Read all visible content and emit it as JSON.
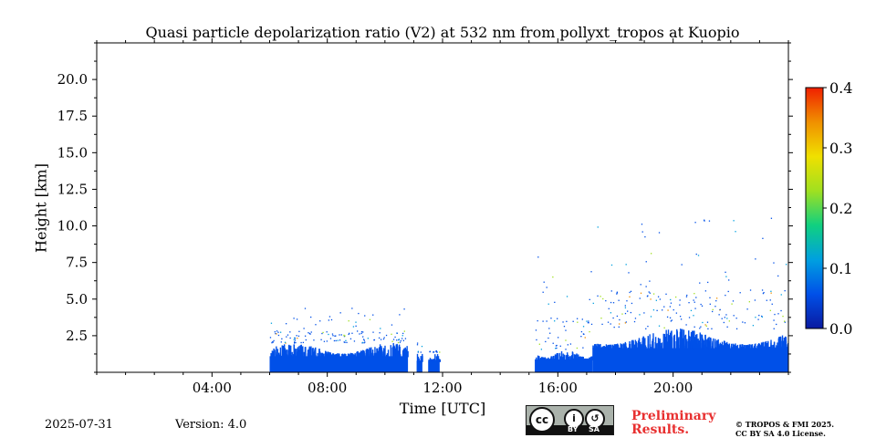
{
  "chart_data": {
    "type": "heatmap",
    "title": "Quasi particle depolarization ratio (V2) at 532 nm from pollyxt_tropos at Kuopio",
    "xlabel": "Time [UTC]",
    "ylabel": "Height [km]",
    "xlim_hours": [
      0,
      24
    ],
    "ylim_km": [
      0,
      22.5
    ],
    "x_ticks": [
      {
        "value": 4,
        "label": "04:00"
      },
      {
        "value": 8,
        "label": "08:00"
      },
      {
        "value": 12,
        "label": "12:00"
      },
      {
        "value": 16,
        "label": "16:00"
      },
      {
        "value": 20,
        "label": "20:00"
      }
    ],
    "y_ticks": [
      {
        "value": 2.5,
        "label": "2.5"
      },
      {
        "value": 5.0,
        "label": "5.0"
      },
      {
        "value": 7.5,
        "label": "7.5"
      },
      {
        "value": 10.0,
        "label": "10.0"
      },
      {
        "value": 12.5,
        "label": "12.5"
      },
      {
        "value": 15.0,
        "label": "15.0"
      },
      {
        "value": 17.5,
        "label": "17.5"
      },
      {
        "value": 20.0,
        "label": "20.0"
      }
    ],
    "colorbar": {
      "min": 0.0,
      "max": 0.4,
      "ticks": [
        {
          "value": 0.0,
          "label": "0.0"
        },
        {
          "value": 0.1,
          "label": "0.1"
        },
        {
          "value": 0.2,
          "label": "0.2"
        },
        {
          "value": 0.3,
          "label": "0.3"
        },
        {
          "value": 0.4,
          "label": "0.4"
        }
      ],
      "colormap": [
        "#0a1aa0",
        "#0050e8",
        "#00a0e0",
        "#10d080",
        "#a0e020",
        "#f0e000",
        "#f09000",
        "#f02000"
      ]
    },
    "data_segments": [
      {
        "start": 6.0,
        "end": 10.8,
        "top_km": 2.0,
        "sparse_top_km": 4.5,
        "value": 0.01
      },
      {
        "start": 11.1,
        "end": 11.3,
        "top_km": 1.4,
        "sparse_top_km": 3.3,
        "value": 0.01
      },
      {
        "start": 11.5,
        "end": 11.9,
        "top_km": 1.4,
        "sparse_top_km": 1.6,
        "value": 0.01
      },
      {
        "start": 15.2,
        "end": 17.2,
        "top_km": 1.6,
        "sparse_top_km": 8.0,
        "value": 0.02
      },
      {
        "start": 17.2,
        "end": 24.0,
        "top_km": 3.0,
        "sparse_top_km": 10.6,
        "value": 0.02
      }
    ]
  },
  "footer": {
    "date": "2025-07-31",
    "version": "Version: 4.0",
    "license_badge": {
      "cc": "cc",
      "by": "BY",
      "sa": "SA"
    },
    "preliminary": "Preliminary Results.",
    "copyright_line1": "© TROPOS & FMI 2025.",
    "copyright_line2": "CC BY SA 4.0 License."
  }
}
